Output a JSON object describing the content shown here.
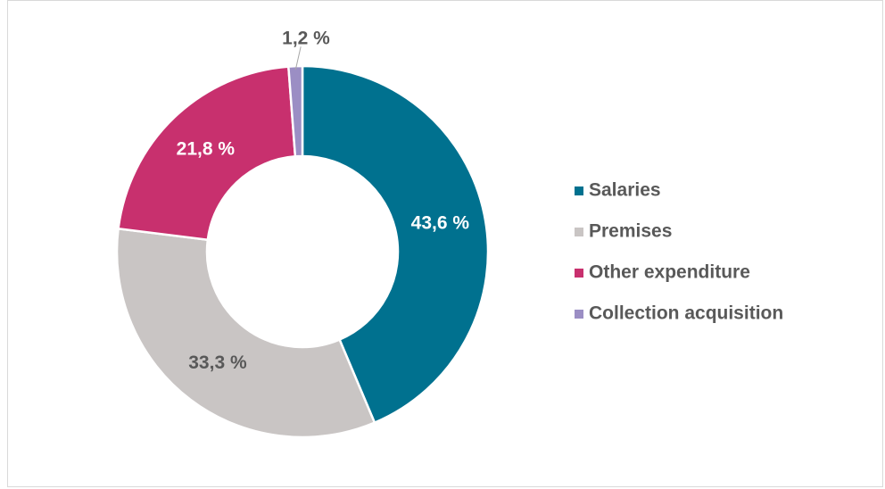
{
  "chart_data": {
    "type": "donut",
    "categories": [
      "Salaries",
      "Premises",
      "Other expenditure",
      "Collection acquisition"
    ],
    "values": [
      43.6,
      33.3,
      21.8,
      1.2
    ],
    "value_labels": [
      "43,6 %",
      "33,3 %",
      "21,8 %",
      "1,2 %"
    ],
    "colors": [
      "#00718f",
      "#c9c5c4",
      "#c8306e",
      "#9b8ec4"
    ],
    "legend": "right"
  }
}
